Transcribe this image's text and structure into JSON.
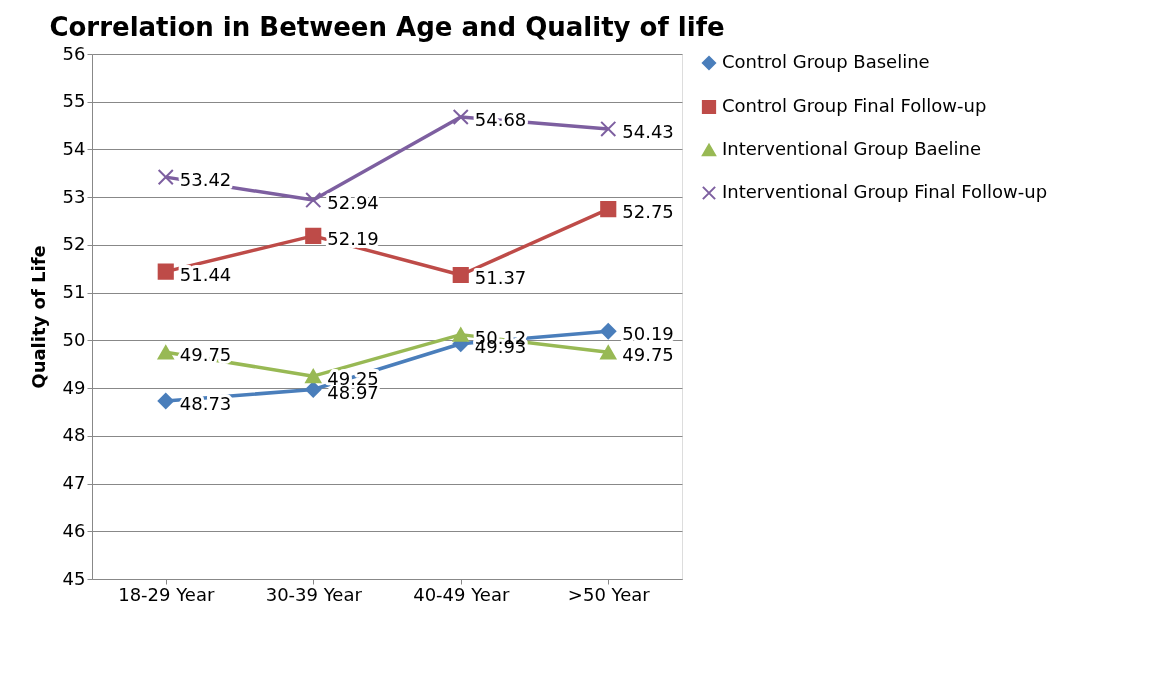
{
  "chart_data": {
    "type": "line",
    "title": "Correlation in Between Age and Quality of life",
    "ylabel": "Quality of Life",
    "categories": [
      "18-29 Year",
      "30-39 Year",
      "40-49 Year",
      ">50 Year"
    ],
    "series": [
      {
        "name": "Control Group Baseline",
        "color": "#4a7ebb",
        "marker": "diamond",
        "values": [
          48.73,
          48.97,
          49.93,
          50.19
        ]
      },
      {
        "name": "Control Group Final Follow-up",
        "color": "#be4b48",
        "marker": "square",
        "values": [
          51.44,
          52.19,
          51.37,
          52.75
        ]
      },
      {
        "name": "Interventional Group Baeline",
        "color": "#98b954",
        "marker": "triangle",
        "values": [
          49.75,
          49.25,
          50.12,
          49.75
        ]
      },
      {
        "name": "Interventional Group Final Follow-up",
        "color": "#7d5fa0",
        "marker": "cross",
        "values": [
          53.42,
          52.94,
          54.68,
          54.43
        ]
      }
    ],
    "ylim": [
      45,
      56
    ],
    "yticks": [
      45,
      46,
      47,
      48,
      49,
      50,
      51,
      52,
      53,
      54,
      55,
      56
    ],
    "grid": "y",
    "legend": "right",
    "data_labels": true,
    "line_style": "solid"
  }
}
